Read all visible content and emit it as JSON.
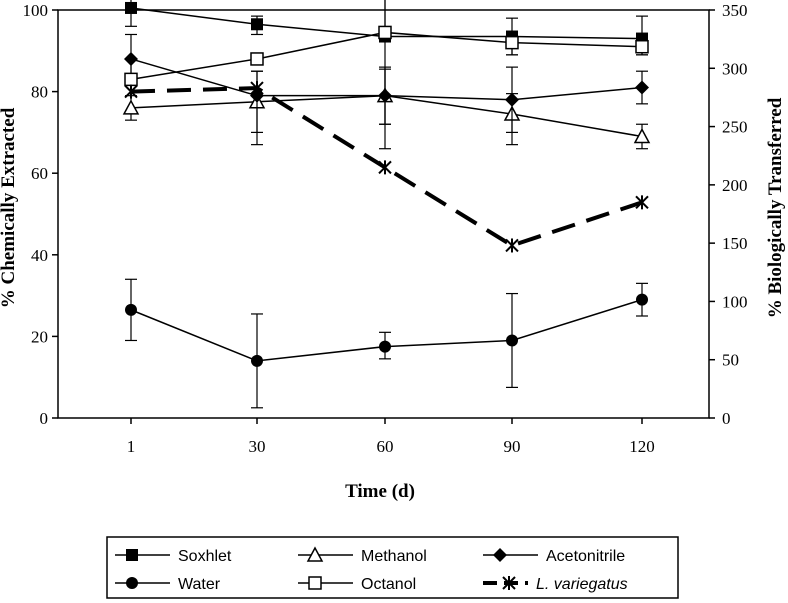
{
  "chart_data": {
    "type": "line",
    "title": "",
    "xlabel": "Time (d)",
    "ylabel_left": "% Chemically Extracted",
    "ylabel_right": "% Biologically Transferred",
    "categories": [
      "1",
      "30",
      "60",
      "90",
      "120"
    ],
    "ylim_left": [
      0,
      100
    ],
    "ylim_right": [
      0,
      350
    ],
    "yticks_left": [
      "0",
      "20",
      "40",
      "60",
      "80",
      "100"
    ],
    "yticks_right": [
      "0",
      "50",
      "100",
      "150",
      "200",
      "250",
      "300",
      "350"
    ],
    "grid": false,
    "legend_position": "bottom",
    "series": [
      {
        "name": "Soxhlet",
        "axis": "left",
        "marker": "filled-square",
        "line": "solid",
        "values": [
          100.5,
          96.5,
          93.5,
          93.5,
          93.0
        ],
        "err_low": [
          96.0,
          94.0,
          72.0,
          89.0,
          89.0
        ],
        "err_high": [
          104.0,
          98.5,
          103.5,
          98.0,
          98.5
        ]
      },
      {
        "name": "Methanol",
        "axis": "left",
        "marker": "open-triangle",
        "line": "solid",
        "values": [
          76.0,
          77.5,
          79.0,
          74.5,
          69.0
        ],
        "err_low": [
          73.0,
          67.0,
          66.0,
          67.0,
          66.0
        ],
        "err_high": [
          79.0,
          85.0,
          85.5,
          79.5,
          72.0
        ]
      },
      {
        "name": "Acetonitrile",
        "axis": "left",
        "marker": "filled-diamond",
        "line": "solid",
        "values": [
          88.0,
          79.0,
          79.0,
          78.0,
          81.0
        ],
        "err_low": [
          82.0,
          70.0,
          72.0,
          70.0,
          77.0
        ],
        "err_high": [
          94.0,
          85.0,
          86.0,
          86.0,
          85.0
        ]
      },
      {
        "name": "Water",
        "axis": "left",
        "marker": "filled-circle",
        "line": "solid",
        "values": [
          26.5,
          14.0,
          17.5,
          19.0,
          29.0
        ],
        "err_low": [
          19.0,
          2.5,
          14.5,
          7.5,
          25.0
        ],
        "err_high": [
          34.0,
          25.5,
          21.0,
          30.5,
          33.0
        ]
      },
      {
        "name": "Octanol",
        "axis": "left",
        "marker": "open-square",
        "line": "solid",
        "values": [
          83.0,
          88.0,
          94.5,
          92.0,
          91.0
        ],
        "err_low": [
          82.0,
          87.0,
          94.0,
          89.0,
          89.0
        ],
        "err_high": [
          88.0,
          89.0,
          103.0,
          94.0,
          93.0
        ]
      },
      {
        "name": "L. variegatus",
        "axis": "right",
        "marker": "asterisk",
        "line": "dashed",
        "values": [
          280,
          283,
          215,
          148,
          185
        ]
      }
    ]
  }
}
